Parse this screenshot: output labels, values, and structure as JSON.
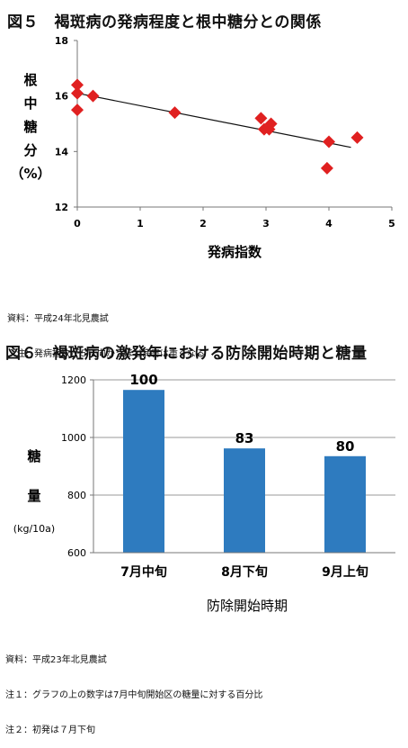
{
  "fig5": {
    "title": "図５　褐斑病の発病程度と根中糖分との関係",
    "notes": [
      "資料：平成24年北見農試",
      "　注：発病指数が５に向かうほど病害は重くなる"
    ]
  },
  "fig6": {
    "title": "図６　褐斑病の激発年における防除開始時期と糖量",
    "notes": [
      "資料：平成23年北見農試",
      "注１：グラフの上の数字は7月中旬開始区の糖量に対する百分比",
      "注２：初発は７月下旬"
    ]
  },
  "chart_data": [
    {
      "type": "scatter",
      "xlabel": "発病指数",
      "ylabel_chars": [
        "根",
        "中",
        "糖",
        "分",
        "（%）"
      ],
      "xlim": [
        0,
        5
      ],
      "ylim": [
        12,
        18
      ],
      "xticks": [
        0,
        1,
        2,
        3,
        4,
        5
      ],
      "yticks": [
        12,
        14,
        16,
        18
      ],
      "grid": false,
      "points": [
        {
          "x": 0.0,
          "y": 16.4
        },
        {
          "x": 0.0,
          "y": 16.1
        },
        {
          "x": 0.0,
          "y": 15.5
        },
        {
          "x": 0.25,
          "y": 16.0
        },
        {
          "x": 1.55,
          "y": 15.4
        },
        {
          "x": 2.92,
          "y": 15.2
        },
        {
          "x": 2.97,
          "y": 14.8
        },
        {
          "x": 3.05,
          "y": 14.8
        },
        {
          "x": 3.08,
          "y": 15.0
        },
        {
          "x": 4.0,
          "y": 14.35
        },
        {
          "x": 3.97,
          "y": 13.4
        },
        {
          "x": 4.45,
          "y": 14.5
        }
      ],
      "trendline": {
        "x": [
          0,
          4.35
        ],
        "y": [
          16.1,
          14.15
        ]
      },
      "marker_color": "#e02020"
    },
    {
      "type": "bar",
      "categories": [
        "7月中旬",
        "8月下旬",
        "9月上旬"
      ],
      "values": [
        1165,
        962,
        935
      ],
      "data_labels": [
        "100",
        "83",
        "80"
      ],
      "xlabel": "防除開始時期",
      "ylabel_chars": [
        "糖",
        "量"
      ],
      "yunit": "(kg/10a)",
      "ylim": [
        600,
        1200
      ],
      "yticks": [
        600,
        800,
        1000,
        1200
      ],
      "grid": true,
      "bar_color": "#2e7bbf"
    }
  ]
}
